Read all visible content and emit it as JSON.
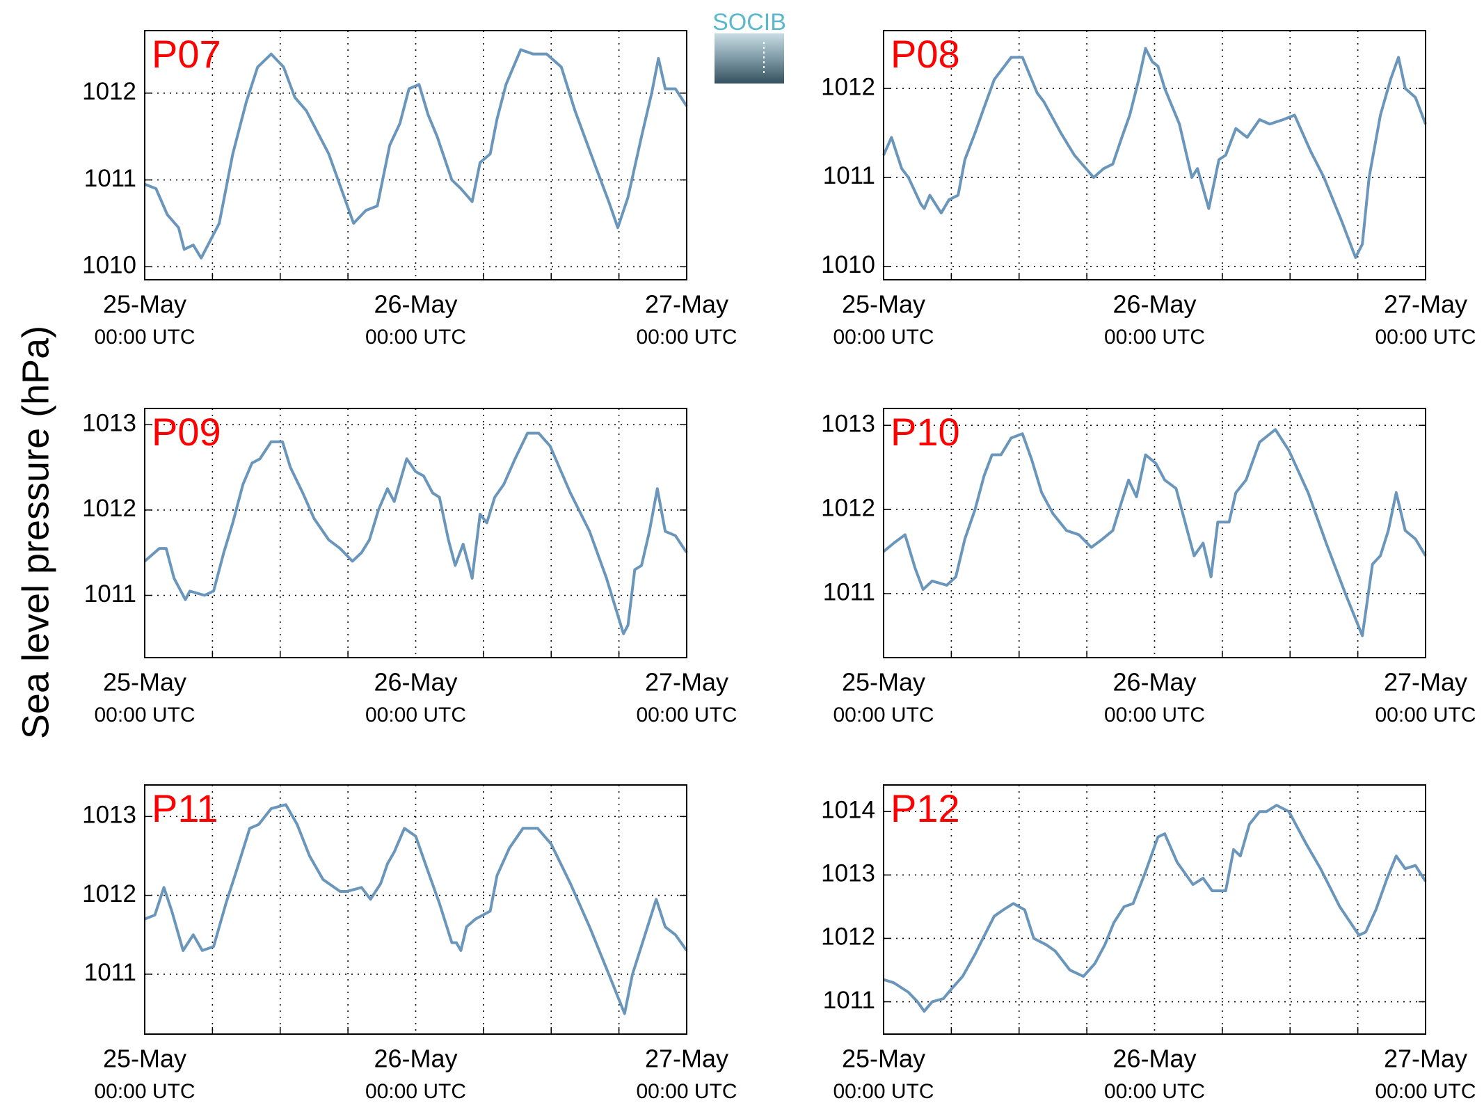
{
  "ylabel": "Sea level pressure (hPa)",
  "logo": "SOCIB",
  "chart_data": [
    {
      "type": "line",
      "title": "P07",
      "color": "#6a96bb",
      "grid": true,
      "xlim": [
        0,
        48
      ],
      "ylim": [
        1009.85,
        1012.72
      ],
      "yticks": [
        1010,
        1011,
        1012
      ],
      "xticks": [
        {
          "value": 0,
          "label": "25-May",
          "sublabel": "00:00 UTC"
        },
        {
          "value": 24,
          "label": "26-May",
          "sublabel": "00:00 UTC"
        },
        {
          "value": 48,
          "label": "27-May",
          "sublabel": "00:00 UTC"
        }
      ],
      "xgrid": [
        6,
        12,
        18,
        30,
        36,
        42
      ],
      "x": [
        0,
        1,
        2,
        3,
        3.5,
        4.3,
        5,
        6,
        6.6,
        7.8,
        9,
        10,
        11.2,
        12.3,
        13.3,
        14.3,
        16.3,
        18.5,
        19.6,
        20.6,
        21.7,
        22.6,
        23.4,
        24.3,
        25.1,
        25.9,
        27.2,
        28,
        29,
        29.7,
        30.6,
        31.2,
        32,
        33.3,
        34.4,
        35.6,
        36.9,
        38.1,
        39.8,
        41.1,
        41.9,
        42.8,
        44,
        44.9,
        45.5,
        46.1,
        47,
        48
      ],
      "values": [
        1010.95,
        1010.9,
        1010.6,
        1010.45,
        1010.2,
        1010.25,
        1010.1,
        1010.35,
        1010.5,
        1011.3,
        1011.9,
        1012.3,
        1012.45,
        1012.3,
        1011.95,
        1011.8,
        1011.3,
        1010.5,
        1010.65,
        1010.7,
        1011.4,
        1011.65,
        1012.05,
        1012.1,
        1011.75,
        1011.5,
        1011.0,
        1010.9,
        1010.75,
        1011.2,
        1011.3,
        1011.7,
        1012.1,
        1012.5,
        1012.45,
        1012.45,
        1012.3,
        1011.8,
        1011.2,
        1010.75,
        1010.45,
        1010.8,
        1011.5,
        1012.0,
        1012.4,
        1012.05,
        1012.05,
        1011.85
      ]
    },
    {
      "type": "line",
      "title": "P08",
      "color": "#6a96bb",
      "grid": true,
      "xlim": [
        0,
        48
      ],
      "ylim": [
        1009.85,
        1012.65
      ],
      "yticks": [
        1010,
        1011,
        1012
      ],
      "xticks": [
        {
          "value": 0,
          "label": "25-May",
          "sublabel": "00:00 UTC"
        },
        {
          "value": 24,
          "label": "26-May",
          "sublabel": "00:00 UTC"
        },
        {
          "value": 48,
          "label": "27-May",
          "sublabel": "00:00 UTC"
        }
      ],
      "xgrid": [
        6,
        12,
        18,
        30,
        36,
        42
      ],
      "x": [
        0,
        0.7,
        1.6,
        2.2,
        3.3,
        3.6,
        4.1,
        5.1,
        5.8,
        6.6,
        7.2,
        8.1,
        8.8,
        9.8,
        11.3,
        12.3,
        13.6,
        14.2,
        15.7,
        16.9,
        18.6,
        19.5,
        20.3,
        21.1,
        21.8,
        22.6,
        23.2,
        23.8,
        24.3,
        24.9,
        26.2,
        27.3,
        27.8,
        28.8,
        29.7,
        30.3,
        31.2,
        32.2,
        33.3,
        34.2,
        35.4,
        36.4,
        37.8,
        39,
        40.6,
        41.8,
        42.4,
        43,
        44,
        44.9,
        45.6,
        46.2,
        47.1,
        48
      ],
      "values": [
        1011.25,
        1011.45,
        1011.1,
        1011.0,
        1010.7,
        1010.65,
        1010.8,
        1010.6,
        1010.75,
        1010.8,
        1011.2,
        1011.5,
        1011.75,
        1012.1,
        1012.35,
        1012.35,
        1011.95,
        1011.85,
        1011.5,
        1011.25,
        1011.0,
        1011.1,
        1011.15,
        1011.45,
        1011.7,
        1012.1,
        1012.45,
        1012.3,
        1012.25,
        1012.0,
        1011.6,
        1011.0,
        1011.1,
        1010.65,
        1011.2,
        1011.25,
        1011.55,
        1011.45,
        1011.65,
        1011.6,
        1011.65,
        1011.7,
        1011.3,
        1011.0,
        1010.5,
        1010.1,
        1010.25,
        1011.0,
        1011.7,
        1012.1,
        1012.35,
        1012.0,
        1011.9,
        1011.6
      ]
    },
    {
      "type": "line",
      "title": "P09",
      "color": "#6a96bb",
      "grid": true,
      "xlim": [
        0,
        48
      ],
      "ylim": [
        1010.27,
        1013.19
      ],
      "yticks": [
        1011,
        1012,
        1013
      ],
      "xticks": [
        {
          "value": 0,
          "label": "25-May",
          "sublabel": "00:00 UTC"
        },
        {
          "value": 24,
          "label": "26-May",
          "sublabel": "00:00 UTC"
        },
        {
          "value": 48,
          "label": "27-May",
          "sublabel": "00:00 UTC"
        }
      ],
      "xgrid": [
        6,
        12,
        18,
        30,
        36,
        42
      ],
      "x": [
        0,
        1.3,
        1.9,
        2.6,
        3.6,
        4,
        5.3,
        6.1,
        7,
        7.8,
        8.7,
        9.5,
        10.2,
        11.2,
        12.2,
        12.9,
        14,
        15,
        16.3,
        17.3,
        18.4,
        19.2,
        19.9,
        20.7,
        21.5,
        22.1,
        23.2,
        24,
        24.7,
        25.5,
        26.1,
        26.9,
        27.5,
        28.2,
        29,
        29.7,
        30.3,
        31,
        31.8,
        32.8,
        33.9,
        34.9,
        35.9,
        37.7,
        39.4,
        40.9,
        42.4,
        42.8,
        43.4,
        44,
        44.7,
        45.4,
        46.1,
        47,
        48
      ],
      "values": [
        1011.4,
        1011.55,
        1011.55,
        1011.2,
        1010.95,
        1011.05,
        1011.0,
        1011.05,
        1011.5,
        1011.85,
        1012.3,
        1012.55,
        1012.6,
        1012.8,
        1012.8,
        1012.5,
        1012.2,
        1011.9,
        1011.65,
        1011.55,
        1011.4,
        1011.5,
        1011.65,
        1012.0,
        1012.25,
        1012.1,
        1012.6,
        1012.45,
        1012.4,
        1012.2,
        1012.15,
        1011.65,
        1011.35,
        1011.6,
        1011.2,
        1011.95,
        1011.85,
        1012.15,
        1012.3,
        1012.6,
        1012.9,
        1012.9,
        1012.75,
        1012.2,
        1011.75,
        1011.2,
        1010.55,
        1010.65,
        1011.3,
        1011.35,
        1011.75,
        1012.25,
        1011.75,
        1011.7,
        1011.5
      ]
    },
    {
      "type": "line",
      "title": "P10",
      "color": "#6a96bb",
      "grid": true,
      "xlim": [
        0,
        48
      ],
      "ylim": [
        1010.24,
        1013.2
      ],
      "yticks": [
        1011,
        1012,
        1013
      ],
      "xticks": [
        {
          "value": 0,
          "label": "25-May",
          "sublabel": "00:00 UTC"
        },
        {
          "value": 24,
          "label": "26-May",
          "sublabel": "00:00 UTC"
        },
        {
          "value": 48,
          "label": "27-May",
          "sublabel": "00:00 UTC"
        }
      ],
      "xgrid": [
        6,
        12,
        18,
        30,
        36,
        42
      ],
      "x": [
        0,
        0.9,
        1.9,
        2.8,
        3.5,
        4.3,
        5.6,
        6.4,
        7.2,
        8.1,
        8.9,
        9.6,
        10.4,
        11.3,
        12.3,
        13.1,
        14,
        15,
        16.2,
        17.3,
        18.4,
        19.4,
        20.3,
        21.1,
        21.7,
        22.4,
        23.2,
        24.1,
        24.9,
        25.9,
        26.8,
        27.5,
        28.3,
        29,
        29.6,
        30.6,
        31.2,
        32.1,
        33.3,
        34.7,
        35.9,
        37.6,
        39.2,
        40.9,
        42.4,
        43.3,
        44,
        44.7,
        45.4,
        46.2,
        47.1,
        48
      ],
      "values": [
        1011.5,
        1011.6,
        1011.7,
        1011.3,
        1011.05,
        1011.15,
        1011.1,
        1011.2,
        1011.65,
        1012.0,
        1012.4,
        1012.65,
        1012.65,
        1012.85,
        1012.9,
        1012.6,
        1012.2,
        1011.95,
        1011.75,
        1011.7,
        1011.55,
        1011.65,
        1011.75,
        1012.1,
        1012.35,
        1012.15,
        1012.65,
        1012.55,
        1012.35,
        1012.25,
        1011.8,
        1011.45,
        1011.6,
        1011.2,
        1011.85,
        1011.85,
        1012.2,
        1012.35,
        1012.8,
        1012.95,
        1012.7,
        1012.2,
        1011.6,
        1011.0,
        1010.5,
        1011.35,
        1011.45,
        1011.75,
        1012.2,
        1011.75,
        1011.65,
        1011.45
      ]
    },
    {
      "type": "line",
      "title": "P11",
      "color": "#6a96bb",
      "grid": true,
      "xlim": [
        0,
        48
      ],
      "ylim": [
        1010.24,
        1013.4
      ],
      "yticks": [
        1011,
        1012,
        1013
      ],
      "xticks": [
        {
          "value": 0,
          "label": "25-May",
          "sublabel": "00:00 UTC"
        },
        {
          "value": 24,
          "label": "26-May",
          "sublabel": "00:00 UTC"
        },
        {
          "value": 48,
          "label": "27-May",
          "sublabel": "00:00 UTC"
        }
      ],
      "xgrid": [
        6,
        12,
        18,
        30,
        36,
        42
      ],
      "x": [
        0,
        0.9,
        1.7,
        2.4,
        3.4,
        4.3,
        5.1,
        6.1,
        7.2,
        8.1,
        9.3,
        10.1,
        11.2,
        12.5,
        13.5,
        14.6,
        15.8,
        17.3,
        17.9,
        19.2,
        20,
        20.9,
        21.5,
        22.1,
        23,
        24,
        25.1,
        26.1,
        27.2,
        27.6,
        28,
        28.5,
        29.3,
        30.6,
        31.2,
        32.3,
        33.5,
        34.8,
        36,
        37.7,
        39.4,
        41.1,
        42.5,
        43.2,
        44.2,
        45.3,
        46.1,
        47,
        48
      ],
      "values": [
        1011.7,
        1011.75,
        1012.1,
        1011.8,
        1011.3,
        1011.5,
        1011.3,
        1011.35,
        1011.9,
        1012.3,
        1012.85,
        1012.9,
        1013.1,
        1013.15,
        1012.9,
        1012.5,
        1012.2,
        1012.05,
        1012.05,
        1012.1,
        1011.95,
        1012.15,
        1012.4,
        1012.55,
        1012.85,
        1012.75,
        1012.3,
        1011.9,
        1011.4,
        1011.4,
        1011.3,
        1011.6,
        1011.7,
        1011.8,
        1012.25,
        1012.6,
        1012.85,
        1012.85,
        1012.65,
        1012.15,
        1011.6,
        1011.0,
        1010.5,
        1011.0,
        1011.45,
        1011.95,
        1011.6,
        1011.5,
        1011.3
      ]
    },
    {
      "type": "line",
      "title": "P12",
      "color": "#6a96bb",
      "grid": true,
      "xlim": [
        0,
        48
      ],
      "ylim": [
        1010.49,
        1014.42
      ],
      "yticks": [
        1011,
        1012,
        1013,
        1014
      ],
      "xticks": [
        {
          "value": 0,
          "label": "25-May",
          "sublabel": "00:00 UTC"
        },
        {
          "value": 24,
          "label": "26-May",
          "sublabel": "00:00 UTC"
        },
        {
          "value": 48,
          "label": "27-May",
          "sublabel": "00:00 UTC"
        }
      ],
      "xgrid": [
        6,
        12,
        18,
        30,
        36,
        42
      ],
      "x": [
        0,
        0.9,
        2.2,
        3,
        3.6,
        4.3,
        5.3,
        6,
        7,
        8.1,
        8.8,
        9.8,
        10.6,
        11.5,
        12.5,
        13.3,
        14.4,
        15.2,
        16.5,
        17.7,
        18.7,
        19.6,
        20.4,
        21.3,
        22.1,
        23.2,
        24.3,
        24.9,
        26,
        27.4,
        28.3,
        29.1,
        30.3,
        31,
        31.6,
        32.4,
        33.3,
        33.9,
        34.8,
        35.9,
        37.4,
        38.7,
        40.4,
        42.1,
        42.7,
        43.6,
        44.6,
        45.4,
        46.2,
        47.1,
        48
      ],
      "values": [
        1011.35,
        1011.3,
        1011.15,
        1011.0,
        1010.85,
        1011.0,
        1011.05,
        1011.2,
        1011.4,
        1011.75,
        1012.0,
        1012.35,
        1012.45,
        1012.55,
        1012.45,
        1012.0,
        1011.9,
        1011.8,
        1011.5,
        1011.4,
        1011.6,
        1011.9,
        1012.25,
        1012.5,
        1012.55,
        1013.05,
        1013.6,
        1013.65,
        1013.2,
        1012.85,
        1012.95,
        1012.75,
        1012.75,
        1013.4,
        1013.3,
        1013.8,
        1014.0,
        1014.0,
        1014.1,
        1014.0,
        1013.5,
        1013.1,
        1012.5,
        1012.05,
        1012.1,
        1012.45,
        1012.95,
        1013.3,
        1013.1,
        1013.15,
        1012.9
      ]
    }
  ]
}
